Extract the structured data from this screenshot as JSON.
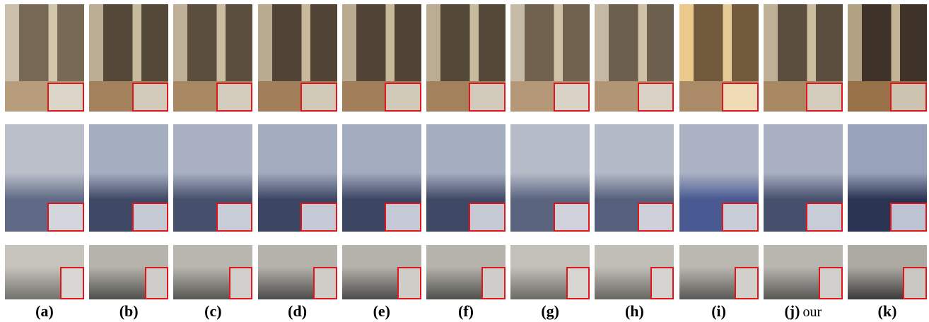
{
  "captions": [
    {
      "label": "(a)"
    },
    {
      "label": "(b)"
    },
    {
      "label": "(c)"
    },
    {
      "label": "(d)"
    },
    {
      "label": "(e)"
    },
    {
      "label": "(f)"
    },
    {
      "label": "(g)"
    },
    {
      "label": "(h)"
    },
    {
      "label": "(i)"
    },
    {
      "label": "(j)",
      "note": "our"
    },
    {
      "label": "(k)"
    }
  ]
}
